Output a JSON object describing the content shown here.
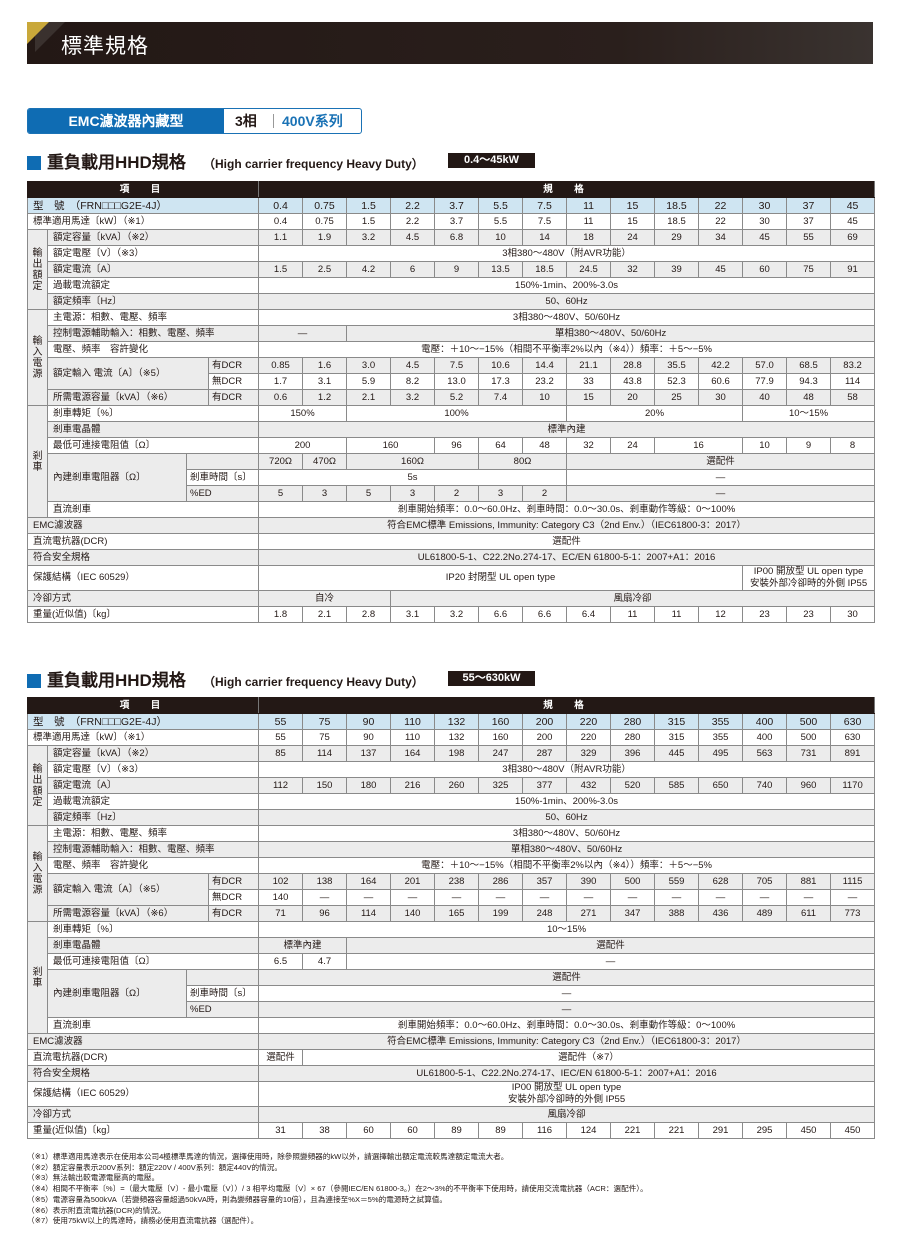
{
  "header": {
    "title": "標準規格"
  },
  "tag": {
    "type": "EMC濾波器內藏型",
    "phase": "3相",
    "series": "400V系列"
  },
  "colors": {
    "accent_blue": "#0f6cb3",
    "header_dark": "#231815",
    "gold": "#c9a83a",
    "model_row": "#cfe5f2",
    "row_grey": "#ececec"
  },
  "sections": [
    {
      "heading": "重負載用HHD規格",
      "subheading": "（High carrier frequency Heavy Duty）",
      "range": "0.4～45kW",
      "table": {
        "head_item": "項　目",
        "head_spec": "規　格",
        "rows": [
          {
            "label": "型　號　（FRN□□□G2E-4J）",
            "model": true,
            "values": [
              "0.4",
              "0.75",
              "1.5",
              "2.2",
              "3.7",
              "5.5",
              "7.5",
              "11",
              "15",
              "18.5",
              "22",
              "30",
              "37",
              "45"
            ]
          },
          {
            "label": "標準適用馬達〔kW〕（※1）",
            "values": [
              "0.4",
              "0.75",
              "1.5",
              "2.2",
              "3.7",
              "5.5",
              "7.5",
              "11",
              "15",
              "18.5",
              "22",
              "30",
              "37",
              "45"
            ]
          },
          {
            "group": "輸出額定",
            "label": "額定容量〔kVA〕（※2）",
            "values": [
              "1.1",
              "1.9",
              "3.2",
              "4.5",
              "6.8",
              "10",
              "14",
              "18",
              "24",
              "29",
              "34",
              "45",
              "55",
              "69"
            ]
          },
          {
            "group": "輸出額定",
            "label": "額定電壓〔V〕（※3）",
            "values": [
              {
                "v": "3相380～480V（附AVR功能）",
                "n": 14
              }
            ]
          },
          {
            "group": "輸出額定",
            "label": "額定電流〔A〕",
            "values": [
              "1.5",
              "2.5",
              "4.2",
              "6",
              "9",
              "13.5",
              "18.5",
              "24.5",
              "32",
              "39",
              "45",
              "60",
              "75",
              "91"
            ]
          },
          {
            "group": "輸出額定",
            "label": "過載電流額定",
            "values": [
              {
                "v": "150%-1min、200%-3.0s",
                "n": 14
              }
            ]
          },
          {
            "group": "輸出額定",
            "label": "額定頻率〔Hz〕",
            "values": [
              {
                "v": "50、60Hz",
                "n": 14
              }
            ]
          },
          {
            "group": "輸入電源",
            "label": "主電源：相數、電壓、頻率",
            "values": [
              {
                "v": "3相380～480V、50/60Hz",
                "n": 14
              }
            ]
          },
          {
            "group": "輸入電源",
            "label": "控制電源輔助輸入：相數、電壓、頻率",
            "values": [
              {
                "v": "—",
                "n": 2
              },
              {
                "v": "單相380～480V、50/60Hz",
                "n": 12
              }
            ]
          },
          {
            "group": "輸入電源",
            "label": "電壓、頻率　容許變化",
            "values": [
              {
                "v": "電壓：＋10～−15%（相間不平衡率2%以內（※4））頻率：＋5～−5%",
                "n": 14
              }
            ]
          },
          {
            "group": "輸入電源",
            "label": "額定輸入 電流〔A〕（※5）",
            "sub": "有DCR",
            "values": [
              "0.85",
              "1.6",
              "3.0",
              "4.5",
              "7.5",
              "10.6",
              "14.4",
              "21.1",
              "28.8",
              "35.5",
              "42.2",
              "57.0",
              "68.5",
              "83.2"
            ]
          },
          {
            "group": "輸入電源",
            "label": "額定輸入 電流〔A〕（※5）",
            "sub": "無DCR",
            "values": [
              "1.7",
              "3.1",
              "5.9",
              "8.2",
              "13.0",
              "17.3",
              "23.2",
              "33",
              "43.8",
              "52.3",
              "60.6",
              "77.9",
              "94.3",
              "114"
            ]
          },
          {
            "group": "輸入電源",
            "label": "所需電源容量〔kVA〕（※6）",
            "sub": "有DCR",
            "values": [
              "0.6",
              "1.2",
              "2.1",
              "3.2",
              "5.2",
              "7.4",
              "10",
              "15",
              "20",
              "25",
              "30",
              "40",
              "48",
              "58"
            ]
          },
          {
            "group": "剎車",
            "label": "剎車轉矩〔%〕",
            "values": [
              {
                "v": "150%",
                "n": 2
              },
              {
                "v": "100%",
                "n": 5
              },
              {
                "v": "20%",
                "n": 4
              },
              {
                "v": "10～15%",
                "n": 3
              }
            ]
          },
          {
            "group": "剎車",
            "label": "剎車電晶體",
            "values": [
              {
                "v": "標準內建",
                "n": 14
              }
            ]
          },
          {
            "group": "剎車",
            "label": "最低可連接電阻值〔Ω〕",
            "values": [
              {
                "v": "200",
                "n": 2
              },
              {
                "v": "160",
                "n": 2
              },
              "96",
              "64",
              "48",
              "32",
              "24",
              {
                "v": "16",
                "n": 2
              },
              "10",
              "9",
              "8"
            ]
          },
          {
            "group": "剎車",
            "label": "內建剎車電阻器〔Ω〕",
            "sub": "",
            "values": [
              "720Ω",
              "470Ω",
              {
                "v": "160Ω",
                "n": 3
              },
              {
                "v": "80Ω",
                "n": 2
              },
              {
                "v": "選配件",
                "n": 7
              }
            ]
          },
          {
            "group": "剎車",
            "label": "內建剎車電阻器〔Ω〕",
            "sub": "剎車時間〔s〕",
            "values": [
              {
                "v": "5s",
                "n": 7
              },
              {
                "v": "—",
                "n": 7
              }
            ]
          },
          {
            "group": "剎車",
            "label": "內建剎車電阻器〔Ω〕",
            "sub": "%ED",
            "values": [
              "5",
              "3",
              "5",
              "3",
              "2",
              "3",
              "2",
              {
                "v": "—",
                "n": 7
              }
            ]
          },
          {
            "group": "剎車",
            "label": "直流剎車",
            "values": [
              {
                "v": "剎車開始頻率：0.0～60.0Hz、剎車時間：0.0～30.0s、剎車動作等級：0～100%",
                "n": 14
              }
            ]
          },
          {
            "label": "EMC濾波器",
            "values": [
              {
                "v": "符合EMC標準 Emissions, Immunity: Category C3（2nd Env.）（IEC61800-3：2017）",
                "n": 14
              }
            ]
          },
          {
            "label": "直流電抗器(DCR)",
            "values": [
              {
                "v": "選配件",
                "n": 14
              }
            ]
          },
          {
            "label": "符合安全規格",
            "values": [
              {
                "v": "UL61800-5-1、C22.2No.274-17、EC/EN 61800-5-1：2007+A1：2016",
                "n": 14
              }
            ]
          },
          {
            "label": "保護結構（IEC 60529）",
            "values": [
              {
                "v": "IP20 封閉型 UL open type",
                "n": 11
              },
              {
                "v": "IP00 開放型 UL open type\n安裝外部冷卻時的外側 IP55",
                "n": 3
              }
            ]
          },
          {
            "label": "冷卻方式",
            "values": [
              {
                "v": "自冷",
                "n": 3
              },
              {
                "v": "風扇冷卻",
                "n": 11
              }
            ]
          },
          {
            "label": "重量(近似值)〔kg〕",
            "values": [
              "1.8",
              "2.1",
              "2.8",
              "3.1",
              "3.2",
              "6.6",
              "6.6",
              "6.4",
              "11",
              "11",
              "12",
              "23",
              "23",
              "30"
            ]
          }
        ]
      }
    },
    {
      "heading": "重負載用HHD規格",
      "subheading": "（High carrier frequency Heavy Duty）",
      "range": "55～630kW",
      "table": {
        "head_item": "項　目",
        "head_spec": "規　格",
        "rows": [
          {
            "label": "型　號　（FRN□□□G2E-4J）",
            "model": true,
            "values": [
              "55",
              "75",
              "90",
              "110",
              "132",
              "160",
              "200",
              "220",
              "280",
              "315",
              "355",
              "400",
              "500",
              "630"
            ]
          },
          {
            "label": "標準適用馬達〔kW〕（※1）",
            "values": [
              "55",
              "75",
              "90",
              "110",
              "132",
              "160",
              "200",
              "220",
              "280",
              "315",
              "355",
              "400",
              "500",
              "630"
            ]
          },
          {
            "group": "輸出額定",
            "label": "額定容量〔kVA〕（※2）",
            "values": [
              "85",
              "114",
              "137",
              "164",
              "198",
              "247",
              "287",
              "329",
              "396",
              "445",
              "495",
              "563",
              "731",
              "891"
            ]
          },
          {
            "group": "輸出額定",
            "label": "額定電壓〔V〕（※3）",
            "values": [
              {
                "v": "3相380～480V（附AVR功能）",
                "n": 14
              }
            ]
          },
          {
            "group": "輸出額定",
            "label": "額定電流〔A〕",
            "values": [
              "112",
              "150",
              "180",
              "216",
              "260",
              "325",
              "377",
              "432",
              "520",
              "585",
              "650",
              "740",
              "960",
              "1170"
            ]
          },
          {
            "group": "輸出額定",
            "label": "過載電流額定",
            "values": [
              {
                "v": "150%-1min、200%-3.0s",
                "n": 14
              }
            ]
          },
          {
            "group": "輸出額定",
            "label": "額定頻率〔Hz〕",
            "values": [
              {
                "v": "50、60Hz",
                "n": 14
              }
            ]
          },
          {
            "group": "輸入電源",
            "label": "主電源：相數、電壓、頻率",
            "values": [
              {
                "v": "3相380～480V、50/60Hz",
                "n": 14
              }
            ]
          },
          {
            "group": "輸入電源",
            "label": "控制電源輔助輸入：相數、電壓、頻率",
            "values": [
              {
                "v": "單相380～480V、50/60Hz",
                "n": 14
              }
            ]
          },
          {
            "group": "輸入電源",
            "label": "電壓、頻率　容許變化",
            "values": [
              {
                "v": "電壓：＋10～−15%（相間不平衡率2%以內（※4））頻率：＋5～−5%",
                "n": 14
              }
            ]
          },
          {
            "group": "輸入電源",
            "label": "額定輸入 電流〔A〕（※5）",
            "sub": "有DCR",
            "values": [
              "102",
              "138",
              "164",
              "201",
              "238",
              "286",
              "357",
              "390",
              "500",
              "559",
              "628",
              "705",
              "881",
              "1115"
            ]
          },
          {
            "group": "輸入電源",
            "label": "額定輸入 電流〔A〕（※5）",
            "sub": "無DCR",
            "values": [
              "140",
              "—",
              "—",
              "—",
              "—",
              "—",
              "—",
              "—",
              "—",
              "—",
              "—",
              "—",
              "—",
              "—"
            ]
          },
          {
            "group": "輸入電源",
            "label": "所需電源容量〔kVA〕（※6）",
            "sub": "有DCR",
            "values": [
              "71",
              "96",
              "114",
              "140",
              "165",
              "199",
              "248",
              "271",
              "347",
              "388",
              "436",
              "489",
              "611",
              "773"
            ]
          },
          {
            "group": "剎車",
            "label": "剎車轉矩〔%〕",
            "values": [
              {
                "v": "10～15%",
                "n": 14
              }
            ]
          },
          {
            "group": "剎車",
            "label": "剎車電晶體",
            "values": [
              {
                "v": "標準內建",
                "n": 2
              },
              {
                "v": "選配件",
                "n": 12
              }
            ]
          },
          {
            "group": "剎車",
            "label": "最低可連接電阻值〔Ω〕",
            "values": [
              "6.5",
              "4.7",
              {
                "v": "—",
                "n": 12
              }
            ]
          },
          {
            "group": "剎車",
            "label": "內建剎車電阻器〔Ω〕",
            "sub": "",
            "values": [
              {
                "v": "選配件",
                "n": 14
              }
            ]
          },
          {
            "group": "剎車",
            "label": "內建剎車電阻器〔Ω〕",
            "sub": "剎車時間〔s〕",
            "values": [
              {
                "v": "—",
                "n": 14
              }
            ]
          },
          {
            "group": "剎車",
            "label": "內建剎車電阻器〔Ω〕",
            "sub": "%ED",
            "values": [
              {
                "v": "—",
                "n": 14
              }
            ]
          },
          {
            "group": "剎車",
            "label": "直流剎車",
            "values": [
              {
                "v": "剎車開始頻率：0.0～60.0Hz、剎車時間：0.0～30.0s、剎車動作等級：0～100%",
                "n": 14
              }
            ]
          },
          {
            "label": "EMC濾波器",
            "values": [
              {
                "v": "符合EMC標準 Emissions, Immunity: Category C3（2nd Env.）（IEC61800-3：2017）",
                "n": 14
              }
            ]
          },
          {
            "label": "直流電抗器(DCR)",
            "values": [
              "選配件",
              {
                "v": "選配件（※7）",
                "n": 13
              }
            ]
          },
          {
            "label": "符合安全規格",
            "values": [
              {
                "v": "UL61800-5-1、C22.2No.274-17、IEC/EN 61800-5-1：2007+A1：2016",
                "n": 14
              }
            ]
          },
          {
            "label": "保護結構（IEC 60529）",
            "values": [
              {
                "v": "IP00 開放型 UL open type\n安裝外部冷卻時的外側 IP55",
                "n": 14
              }
            ]
          },
          {
            "label": "冷卻方式",
            "values": [
              {
                "v": "風扇冷卻",
                "n": 14
              }
            ]
          },
          {
            "label": "重量(近似值)〔kg〕",
            "values": [
              "31",
              "38",
              "60",
              "60",
              "89",
              "89",
              "116",
              "124",
              "221",
              "221",
              "291",
              "295",
              "450",
              "450"
            ]
          }
        ]
      }
    }
  ],
  "notes": [
    "（※1）標準適用馬達表示在使用本公司4極標準馬達的情況，選擇使用時，除參照變頻器的kW以外，請選擇輸出額定電流較馬達額定電流大者。",
    "（※2）額定容量表示200V系列：額定220V / 400V系列：額定440V的情況。",
    "（※3）無法輸出較電源電壓高的電壓。",
    "（※4）相間不平衡率〔%〕=（最大電壓〔V〕- 最小電壓〔V〕）/ 3 相平均電壓〔V〕× 67（參閱IEC/EN 61800-3。）在2～3%的不平衡率下使用時，請使用交流電抗器（ACR：選配件）。",
    "（※5）電源容量為500kVA（若變頻器容量超過50kVA時，則為變頻器容量的10倍），且為連接至%X＝5%的電源時之試算值。",
    "（※6）表示附直流電抗器(DCR)的情況。",
    "（※7）使用75kW以上的馬達時，請務必使用直流電抗器（選配件）。"
  ]
}
